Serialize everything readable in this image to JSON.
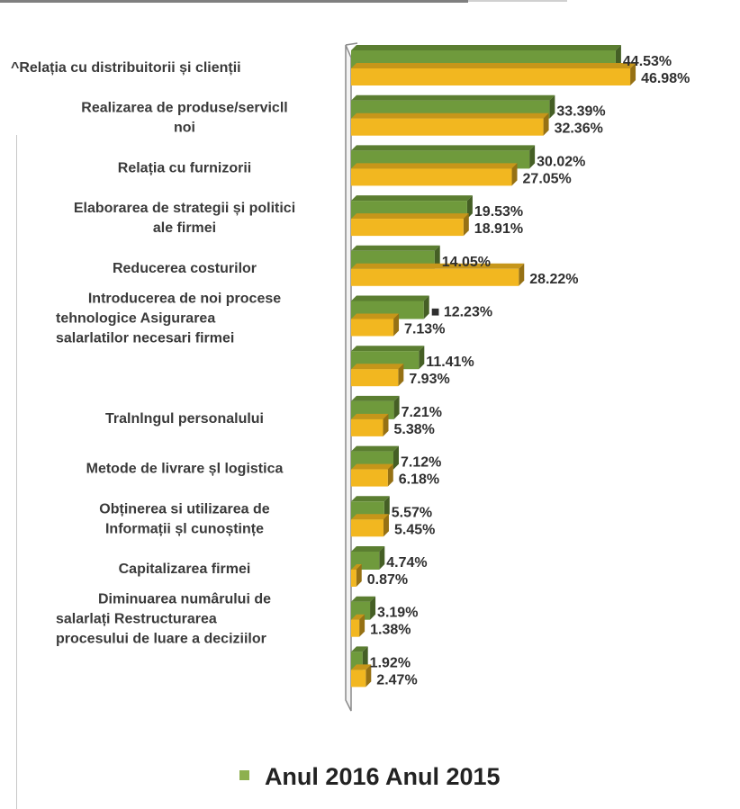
{
  "chart_data": {
    "type": "bar",
    "orientation": "horizontal",
    "title": "",
    "categories": [
      "^Relația cu distribuitorii și clienții",
      "Realizarea de produse/servicll noi",
      "Relația cu furnizorii",
      "Elaborarea de strategii și politici ale firmei",
      "Reducerea costurilor",
      "Introducerea de noi procese tehnologice Asigurarea salarlatilor necesari firmei",
      "",
      "Tralnlngul personalului",
      "Metode de livrare șl logistica",
      "Obținerea si utilizarea de Informații șl cunoștințe",
      "Capitalizarea firmei",
      "Diminuarea numârului de salarlați Restructurarea procesului de luare a deciziilor",
      ""
    ],
    "category_lines": [
      [
        "^Relația cu distribuitorii și clienții"
      ],
      [
        "Realizarea de produse/servicll",
        "noi"
      ],
      [
        "Relația cu furnizorii"
      ],
      [
        "Elaborarea de strategii și politici",
        "ale firmei"
      ],
      [
        "Reducerea costurilor"
      ],
      [
        "Introducerea de noi procese",
        "tehnologice Asigurarea",
        "salarlatilor necesari firmei"
      ],
      [],
      [
        "Tralnlngul personalului"
      ],
      [
        "Metode de livrare șl logistica"
      ],
      [
        "Obținerea si utilizarea de",
        "Informații șl cunoștințe"
      ],
      [
        "Capitalizarea firmei"
      ],
      [
        "Diminuarea numârului de",
        "salarlați Restructurarea",
        "procesului de luare a deciziilor"
      ],
      []
    ],
    "series": [
      {
        "name": "Anul 2016",
        "color": "#6f9a3c",
        "values": [
          44.53,
          33.39,
          30.02,
          19.53,
          14.05,
          12.23,
          11.41,
          7.21,
          7.12,
          5.57,
          4.74,
          3.19,
          1.92
        ],
        "labels": [
          "44.53%",
          "33.39%",
          "30.02%",
          "19.53%",
          "14.05%",
          "■ 12.23%",
          "11.41%",
          "7.21%",
          "7.12%",
          "5.57%",
          "4.74%",
          "3.19%",
          "1.92%"
        ]
      },
      {
        "name": "Anul 2015",
        "color": "#f2b720",
        "values": [
          46.98,
          32.36,
          27.05,
          18.91,
          28.22,
          7.13,
          7.93,
          5.38,
          6.18,
          5.45,
          0.87,
          1.38,
          2.47
        ],
        "labels": [
          "46.98%",
          "32.36%",
          "27.05%",
          "18.91%",
          "28.22%",
          "7.13%",
          "7.93%",
          "5.38%",
          "6.18%",
          "5.45%",
          "0.87%",
          "1.38%",
          "2.47%"
        ]
      }
    ],
    "legend": {
      "marker_color": "#8db04e",
      "text_2016": "Anul 2016",
      "text_2015": "Anul 2015",
      "placement": "bottom-center"
    },
    "grid": false,
    "xlim": [
      0,
      50
    ]
  }
}
